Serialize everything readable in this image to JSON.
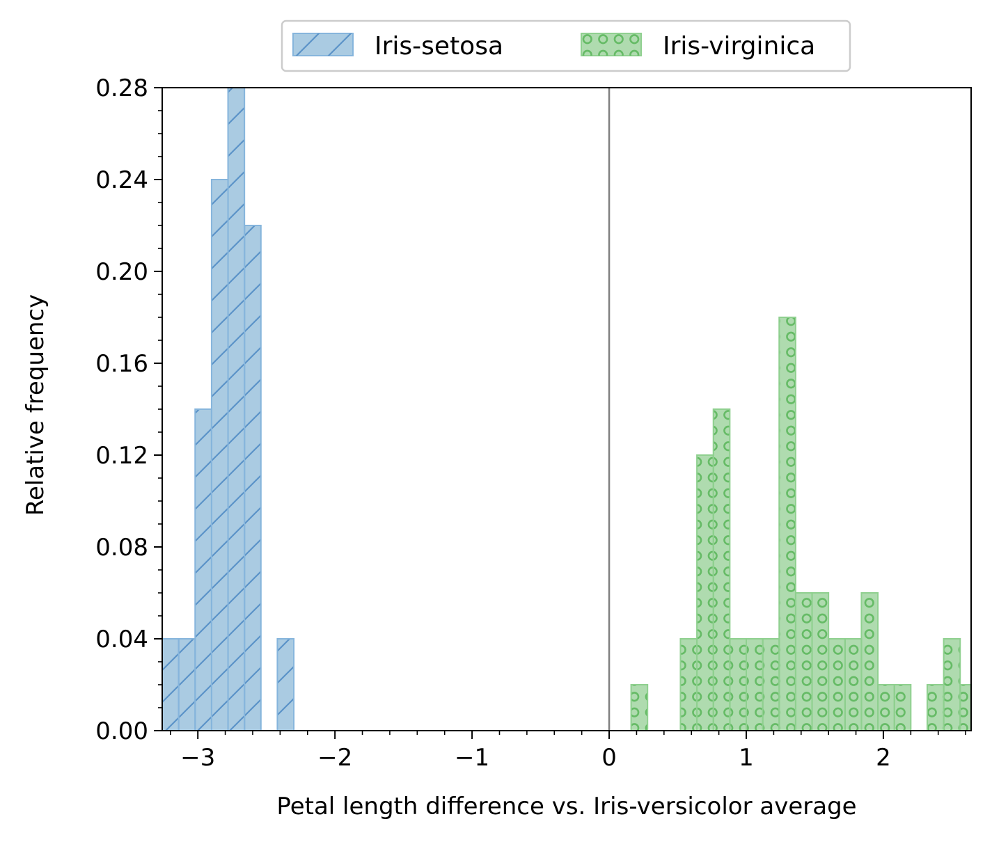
{
  "chart_data": {
    "type": "bar",
    "xlabel": "Petal length difference vs. Iris-versicolor average",
    "ylabel": "Relative frequency",
    "xlim": [
      -3.26,
      2.64
    ],
    "ylim": [
      0,
      0.28
    ],
    "x_ticks": [
      -3,
      -2,
      -1,
      0,
      1,
      2
    ],
    "x_tick_labels": [
      "−3",
      "−2",
      "−1",
      "0",
      "1",
      "2"
    ],
    "y_ticks": [
      0.0,
      0.04,
      0.08,
      0.12,
      0.16,
      0.2,
      0.24,
      0.28
    ],
    "y_tick_labels": [
      "0.00",
      "0.04",
      "0.08",
      "0.12",
      "0.16",
      "0.20",
      "0.24",
      "0.28"
    ],
    "reference_line_x": 0,
    "legend_position": "top-center, outside above plot",
    "series": [
      {
        "name": "Iris-setosa",
        "color": "#1f77b4",
        "hatch": "diagonal",
        "bins": [
          {
            "x0": -3.26,
            "x1": -3.14,
            "value": 0.04
          },
          {
            "x0": -3.14,
            "x1": -3.02,
            "value": 0.04
          },
          {
            "x0": -3.02,
            "x1": -2.9,
            "value": 0.14
          },
          {
            "x0": -2.9,
            "x1": -2.78,
            "value": 0.24
          },
          {
            "x0": -2.78,
            "x1": -2.66,
            "value": 0.28
          },
          {
            "x0": -2.66,
            "x1": -2.54,
            "value": 0.22
          },
          {
            "x0": -2.42,
            "x1": -2.3,
            "value": 0.04
          }
        ]
      },
      {
        "name": "Iris-virginica",
        "color": "#2ca02c",
        "hatch": "circles",
        "bins": [
          {
            "x0": 0.16,
            "x1": 0.28,
            "value": 0.02
          },
          {
            "x0": 0.52,
            "x1": 0.64,
            "value": 0.04
          },
          {
            "x0": 0.64,
            "x1": 0.76,
            "value": 0.12
          },
          {
            "x0": 0.76,
            "x1": 0.88,
            "value": 0.14
          },
          {
            "x0": 0.88,
            "x1": 1.0,
            "value": 0.04
          },
          {
            "x0": 1.0,
            "x1": 1.12,
            "value": 0.04
          },
          {
            "x0": 1.12,
            "x1": 1.24,
            "value": 0.04
          },
          {
            "x0": 1.24,
            "x1": 1.36,
            "value": 0.18
          },
          {
            "x0": 1.36,
            "x1": 1.48,
            "value": 0.06
          },
          {
            "x0": 1.48,
            "x1": 1.6,
            "value": 0.06
          },
          {
            "x0": 1.6,
            "x1": 1.72,
            "value": 0.04
          },
          {
            "x0": 1.72,
            "x1": 1.84,
            "value": 0.04
          },
          {
            "x0": 1.84,
            "x1": 1.96,
            "value": 0.06
          },
          {
            "x0": 1.96,
            "x1": 2.08,
            "value": 0.02
          },
          {
            "x0": 2.08,
            "x1": 2.2,
            "value": 0.02
          },
          {
            "x0": 2.32,
            "x1": 2.44,
            "value": 0.02
          },
          {
            "x0": 2.44,
            "x1": 2.56,
            "value": 0.04
          },
          {
            "x0": 2.56,
            "x1": 2.68,
            "value": 0.02
          }
        ]
      }
    ]
  }
}
